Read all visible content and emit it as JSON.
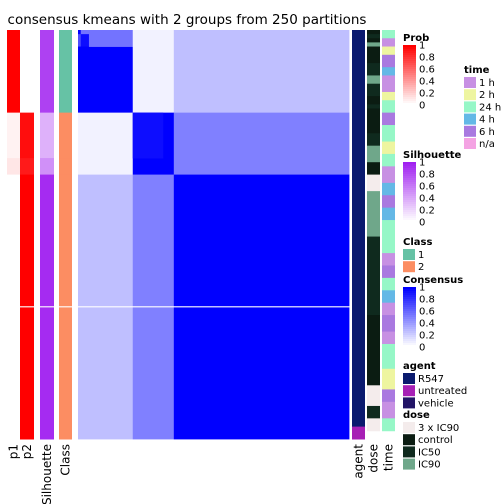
{
  "chart_data": {
    "type": "heatmap",
    "title": "consensus kmeans with 2 groups from 250 partitions",
    "column_labels": [
      "p1",
      "p2",
      "Silhouette",
      "Class"
    ],
    "annotation_column_labels": [
      "agent",
      "dose",
      "time"
    ],
    "row_groups": [
      {
        "rows": 20,
        "class": "1",
        "p1": 1.0,
        "p2": 0.0,
        "silhouette": 0.85
      },
      {
        "rows": 11,
        "class": "2",
        "p1": 0.05,
        "p2": 0.95,
        "silhouette": 0.35
      },
      {
        "rows": 4,
        "class": "2",
        "p1": 0.1,
        "p2": 0.9,
        "silhouette": 0.5
      },
      {
        "rows": 64,
        "class": "2",
        "p1": 0.0,
        "p2": 1.0,
        "silhouette": 0.95
      }
    ],
    "consensus_blocks": [
      {
        "r0": 0,
        "r1": 1,
        "c0": 0,
        "c1": 1,
        "v": 1.0
      },
      {
        "r0": 0,
        "r1": 20,
        "c0": 1,
        "c1": 5,
        "v": 0.55
      },
      {
        "r0": 1,
        "r1": 4,
        "c0": 0,
        "c1": 1,
        "v": 0.7
      },
      {
        "r0": 1,
        "r1": 4,
        "c0": 1,
        "c1": 4,
        "v": 0.95
      },
      {
        "r0": 4,
        "r1": 20,
        "c0": 0,
        "c1": 20,
        "v": 1.0
      },
      {
        "r0": 0,
        "r1": 4,
        "c0": 4,
        "c1": 20,
        "v": 0.55
      },
      {
        "r0": 0,
        "r1": 20,
        "c0": 20,
        "c1": 35,
        "v": 0.05
      },
      {
        "r0": 0,
        "r1": 20,
        "c0": 35,
        "c1": 99,
        "v": 0.25
      },
      {
        "r0": 20,
        "r1": 35,
        "c0": 0,
        "c1": 20,
        "v": 0.05
      },
      {
        "r0": 20,
        "r1": 35,
        "c0": 20,
        "c1": 35,
        "v": 1.0
      },
      {
        "r0": 20,
        "r1": 31,
        "c0": 20,
        "c1": 31,
        "v": 0.95
      },
      {
        "r0": 20,
        "r1": 35,
        "c0": 35,
        "c1": 99,
        "v": 0.5
      },
      {
        "r0": 35,
        "r1": 99,
        "c0": 0,
        "c1": 20,
        "v": 0.25
      },
      {
        "r0": 35,
        "r1": 99,
        "c0": 20,
        "c1": 35,
        "v": 0.5
      },
      {
        "r0": 35,
        "r1": 99,
        "c0": 35,
        "c1": 99,
        "v": 1.0
      }
    ],
    "annotation_rows": {
      "agent": [
        {
          "rows": 96,
          "value": "R547"
        },
        {
          "rows": 3,
          "value": "untreated"
        }
      ],
      "dose": [
        {
          "rows": 1,
          "value": "control"
        },
        {
          "rows": 1,
          "value": "IC50"
        },
        {
          "rows": 1,
          "value": "control"
        },
        {
          "rows": 1,
          "value": "IC90"
        },
        {
          "rows": 4,
          "value": "control"
        },
        {
          "rows": 3,
          "value": "IC50"
        },
        {
          "rows": 2,
          "value": "IC90"
        },
        {
          "rows": 3,
          "value": "IC50"
        },
        {
          "rows": 2,
          "value": "control"
        },
        {
          "rows": 1,
          "value": "IC50"
        },
        {
          "rows": 6,
          "value": "control"
        },
        {
          "rows": 3,
          "value": "IC50"
        },
        {
          "rows": 4,
          "value": "IC90"
        },
        {
          "rows": 3,
          "value": "control"
        },
        {
          "rows": 4,
          "value": "3 x IC90"
        },
        {
          "rows": 11,
          "value": "IC90"
        },
        {
          "rows": 19,
          "value": "IC50"
        },
        {
          "rows": 17,
          "value": "control"
        },
        {
          "rows": 5,
          "value": "3 x IC90"
        },
        {
          "rows": 3,
          "value": "IC50"
        },
        {
          "rows": 3,
          "value": "3 x IC90"
        }
      ],
      "time": [
        {
          "rows": 2,
          "value": "24 h"
        },
        {
          "rows": 2,
          "value": "1 h"
        },
        {
          "rows": 2,
          "value": "2 h"
        },
        {
          "rows": 3,
          "value": "6 h"
        },
        {
          "rows": 2,
          "value": "4 h"
        },
        {
          "rows": 4,
          "value": "1 h"
        },
        {
          "rows": 2,
          "value": "2 h"
        },
        {
          "rows": 3,
          "value": "24 h"
        },
        {
          "rows": 3,
          "value": "6 h"
        },
        {
          "rows": 4,
          "value": "24 h"
        },
        {
          "rows": 3,
          "value": "2 h"
        },
        {
          "rows": 3,
          "value": "24 h"
        },
        {
          "rows": 4,
          "value": "1 h"
        },
        {
          "rows": 3,
          "value": "4 h"
        },
        {
          "rows": 3,
          "value": "6 h"
        },
        {
          "rows": 3,
          "value": "4 h"
        },
        {
          "rows": 8,
          "value": "24 h"
        },
        {
          "rows": 3,
          "value": "1 h"
        },
        {
          "rows": 3,
          "value": "6 h"
        },
        {
          "rows": 3,
          "value": "24 h"
        },
        {
          "rows": 3,
          "value": "4 h"
        },
        {
          "rows": 3,
          "value": "1 h"
        },
        {
          "rows": 4,
          "value": "6 h"
        },
        {
          "rows": 3,
          "value": "1 h"
        },
        {
          "rows": 6,
          "value": "24 h"
        },
        {
          "rows": 5,
          "value": "2 h"
        },
        {
          "rows": 3,
          "value": "6 h"
        },
        {
          "rows": 4,
          "value": "1 h"
        },
        {
          "rows": 3,
          "value": "24 h"
        }
      ]
    },
    "legends": [
      {
        "title": "Prob",
        "type": "gradient",
        "colors": [
          "#FFFFFF",
          "#FF0000"
        ],
        "labels": [
          "1",
          "0.8",
          "0.6",
          "0.4",
          "0.2",
          "0"
        ]
      },
      {
        "title": "Silhouette",
        "type": "gradient",
        "colors": [
          "#FFFFFF",
          "#A020F0"
        ],
        "labels": [
          "1",
          "0.8",
          "0.6",
          "0.4",
          "0.2",
          "0"
        ]
      },
      {
        "title": "Class",
        "type": "discrete",
        "items": [
          {
            "label": "1",
            "color": "#66C2A5"
          },
          {
            "label": "2",
            "color": "#FC8D62"
          }
        ]
      },
      {
        "title": "Consensus",
        "type": "gradient",
        "colors": [
          "#FFFFFF",
          "#0000FF"
        ],
        "labels": [
          "1",
          "0.8",
          "0.6",
          "0.4",
          "0.2",
          "0"
        ]
      },
      {
        "title": "agent",
        "type": "discrete",
        "items": [
          {
            "label": "R547",
            "color": "#0A1A6E"
          },
          {
            "label": "untreated",
            "color": "#A71FB5"
          },
          {
            "label": "vehicle",
            "color": "#221466"
          }
        ]
      },
      {
        "title": "dose",
        "type": "discrete",
        "items": [
          {
            "label": "3 x IC90",
            "color": "#F4ECEC"
          },
          {
            "label": "control",
            "color": "#0B1C12"
          },
          {
            "label": "IC50",
            "color": "#0F2A1E"
          },
          {
            "label": "IC90",
            "color": "#6FA78A"
          }
        ]
      },
      {
        "title": "time",
        "type": "discrete",
        "items": [
          {
            "label": "1 h",
            "color": "#C790E3"
          },
          {
            "label": "2 h",
            "color": "#EEF5A0"
          },
          {
            "label": "24 h",
            "color": "#96F7C7"
          },
          {
            "label": "4 h",
            "color": "#64B8E6"
          },
          {
            "label": "6 h",
            "color": "#A979E0"
          },
          {
            "label": "n/a",
            "color": "#F4A3E3"
          }
        ]
      }
    ],
    "colors": {
      "prob_high": "#FF0000",
      "silhouette_high": "#A020F0",
      "consensus_high": "#0000FF"
    }
  }
}
